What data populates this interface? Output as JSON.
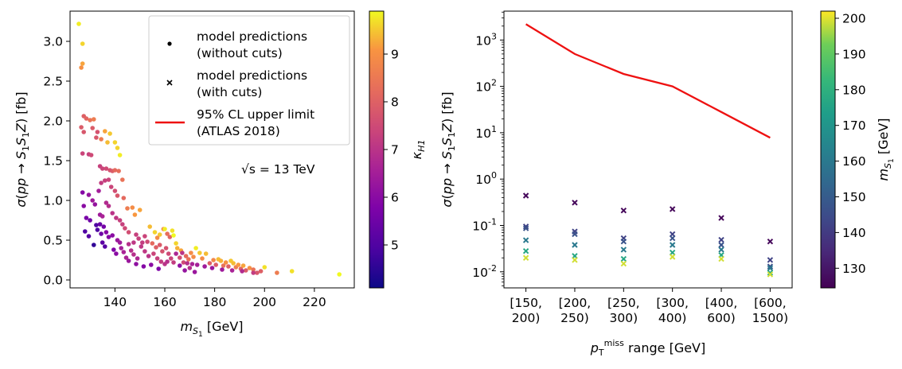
{
  "chart_data": [
    {
      "type": "scatter",
      "title": "",
      "xlabel": "m_S1 [GeV]",
      "ylabel": "σ(pp → S1 S1 Z) [fb]",
      "xlim": [
        122,
        236
      ],
      "ylim": [
        -0.1,
        3.38
      ],
      "xticks": [
        140,
        160,
        180,
        200,
        220
      ],
      "yticks": [
        0.0,
        0.5,
        1.0,
        1.5,
        2.0,
        2.5,
        3.0,
        3.5
      ],
      "xtick_labels": [
        "140",
        "160",
        "180",
        "200",
        "220"
      ],
      "ytick_labels": [
        "0.0",
        "0.5",
        "1.0",
        "1.5",
        "2.0",
        "2.5",
        "3.0"
      ],
      "annotation": "√s = 13 TeV",
      "legend": {
        "placement": "top-right",
        "entries": [
          {
            "marker": "dot",
            "line1": "model predictions",
            "line2": "(without cuts)"
          },
          {
            "marker": "cross",
            "line1": "model predictions",
            "line2": "(with cuts)"
          },
          {
            "marker": "line",
            "line1": "95% CL upper limit",
            "line2": "(ATLAS 2018)",
            "color": "#ee1111"
          }
        ]
      },
      "colorbar": {
        "label": "κ_H1",
        "colormap": "plasma",
        "range": [
          4.1,
          9.9
        ],
        "ticks": [
          5,
          6,
          7,
          8,
          9
        ],
        "tick_labels": [
          "5",
          "6",
          "7",
          "8",
          "9"
        ]
      },
      "points": [
        [
          125.5,
          3.22,
          9.8
        ],
        [
          127,
          2.97,
          9.6
        ],
        [
          127,
          2.72,
          9.2
        ],
        [
          126.5,
          2.67,
          9.0
        ],
        [
          127.5,
          2.06,
          8.0
        ],
        [
          128.5,
          2.03,
          8.1
        ],
        [
          126.5,
          1.92,
          7.9
        ],
        [
          127.5,
          1.86,
          7.8
        ],
        [
          130,
          2.01,
          8.4
        ],
        [
          131.5,
          2.02,
          8.6
        ],
        [
          131,
          1.91,
          7.9
        ],
        [
          133,
          1.86,
          7.7
        ],
        [
          127,
          1.59,
          7.4
        ],
        [
          129.5,
          1.58,
          7.3
        ],
        [
          132.5,
          1.79,
          7.8
        ],
        [
          134.5,
          1.77,
          8.6
        ],
        [
          136,
          1.87,
          9.2
        ],
        [
          137,
          1.73,
          9.4
        ],
        [
          138,
          1.84,
          9.5
        ],
        [
          140,
          1.73,
          9.6
        ],
        [
          141,
          1.66,
          9.6
        ],
        [
          142,
          1.57,
          9.8
        ],
        [
          130.5,
          1.57,
          7.5
        ],
        [
          134,
          1.43,
          7.3
        ],
        [
          135,
          1.4,
          7.4
        ],
        [
          136.5,
          1.4,
          7.5
        ],
        [
          138,
          1.38,
          7.7
        ],
        [
          139,
          1.37,
          7.9
        ],
        [
          140,
          1.38,
          8.2
        ],
        [
          141.5,
          1.37,
          8.3
        ],
        [
          143,
          1.26,
          8.4
        ],
        [
          134.5,
          1.22,
          7.2
        ],
        [
          136,
          1.25,
          7.3
        ],
        [
          137.5,
          1.26,
          7.4
        ],
        [
          138.5,
          1.17,
          7.4
        ],
        [
          140,
          1.12,
          7.6
        ],
        [
          141,
          1.06,
          7.8
        ],
        [
          143.5,
          1.03,
          8.2
        ],
        [
          145,
          0.9,
          8.6
        ],
        [
          147,
          0.91,
          8.9
        ],
        [
          148,
          0.82,
          9.1
        ],
        [
          150,
          0.88,
          9.2
        ],
        [
          127,
          1.1,
          5.9
        ],
        [
          129.5,
          1.07,
          6.2
        ],
        [
          131,
          1.0,
          6.4
        ],
        [
          132,
          0.95,
          6.2
        ],
        [
          127.5,
          0.93,
          6.0
        ],
        [
          128.5,
          0.78,
          5.7
        ],
        [
          130,
          0.75,
          5.5
        ],
        [
          133.5,
          1.12,
          6.5
        ],
        [
          134,
          0.82,
          6.4
        ],
        [
          135,
          0.8,
          6.6
        ],
        [
          136.5,
          0.97,
          6.8
        ],
        [
          137.5,
          0.93,
          6.9
        ],
        [
          139,
          0.84,
          7.0
        ],
        [
          140.5,
          0.78,
          7.1
        ],
        [
          142,
          0.75,
          7.3
        ],
        [
          143,
          0.7,
          7.3
        ],
        [
          144,
          0.65,
          7.5
        ],
        [
          145.5,
          0.6,
          7.6
        ],
        [
          128,
          0.61,
          5.0
        ],
        [
          129.5,
          0.55,
          5.1
        ],
        [
          131.5,
          0.44,
          4.6
        ],
        [
          132.5,
          0.69,
          5.0
        ],
        [
          133,
          0.63,
          5.0
        ],
        [
          134,
          0.7,
          5.4
        ],
        [
          135.5,
          0.67,
          5.6
        ],
        [
          136.5,
          0.6,
          5.9
        ],
        [
          134.5,
          0.58,
          5.5
        ],
        [
          135,
          0.47,
          5.2
        ],
        [
          136,
          0.42,
          5.1
        ],
        [
          137.5,
          0.54,
          5.9
        ],
        [
          139,
          0.56,
          6.0
        ],
        [
          141,
          0.5,
          6.3
        ],
        [
          142,
          0.47,
          6.4
        ],
        [
          139.5,
          0.38,
          5.8
        ],
        [
          140.5,
          0.33,
          6.0
        ],
        [
          142.5,
          0.4,
          6.5
        ],
        [
          143.5,
          0.35,
          6.6
        ],
        [
          144.5,
          0.28,
          6.6
        ],
        [
          145.5,
          0.45,
          6.9
        ],
        [
          146.5,
          0.37,
          6.9
        ],
        [
          147.5,
          0.47,
          7.1
        ],
        [
          148.5,
          0.57,
          7.3
        ],
        [
          149.5,
          0.52,
          7.3
        ],
        [
          151,
          0.47,
          7.2
        ],
        [
          152,
          0.55,
          7.4
        ],
        [
          153,
          0.48,
          7.5
        ],
        [
          147.5,
          0.32,
          6.9
        ],
        [
          149,
          0.27,
          6.7
        ],
        [
          150.5,
          0.42,
          7.1
        ],
        [
          152,
          0.36,
          7.1
        ],
        [
          153.5,
          0.3,
          7.0
        ],
        [
          154,
          0.67,
          9.4
        ],
        [
          156,
          0.6,
          9.6
        ],
        [
          158,
          0.57,
          9.5
        ],
        [
          159.5,
          0.64,
          8.8
        ],
        [
          161,
          0.58,
          8.3
        ],
        [
          162,
          0.54,
          8.1
        ],
        [
          157,
          0.53,
          8.9
        ],
        [
          160,
          0.64,
          9.8
        ],
        [
          163,
          0.62,
          9.7
        ],
        [
          163.5,
          0.56,
          9.9
        ],
        [
          164.5,
          0.46,
          9.6
        ],
        [
          165,
          0.4,
          9.3
        ],
        [
          166.5,
          0.37,
          9.2
        ],
        [
          155,
          0.46,
          8.2
        ],
        [
          156.5,
          0.41,
          8.0
        ],
        [
          158,
          0.44,
          7.9
        ],
        [
          159,
          0.36,
          7.7
        ],
        [
          160.5,
          0.4,
          7.7
        ],
        [
          161.5,
          0.33,
          7.5
        ],
        [
          162.5,
          0.27,
          7.4
        ],
        [
          163.5,
          0.22,
          7.2
        ],
        [
          155.5,
          0.33,
          7.4
        ],
        [
          157,
          0.27,
          7.3
        ],
        [
          158.5,
          0.23,
          7.2
        ],
        [
          160,
          0.2,
          7.0
        ],
        [
          161,
          0.23,
          6.9
        ],
        [
          166,
          0.28,
          7.6
        ],
        [
          167.5,
          0.22,
          7.5
        ],
        [
          168.5,
          0.3,
          8.2
        ],
        [
          169.5,
          0.26,
          8.4
        ],
        [
          170.5,
          0.34,
          8.9
        ],
        [
          171.5,
          0.29,
          8.9
        ],
        [
          172.5,
          0.4,
          9.8
        ],
        [
          174,
          0.34,
          9.5
        ],
        [
          175,
          0.27,
          8.9
        ],
        [
          176.5,
          0.33,
          9.4
        ],
        [
          178,
          0.21,
          8.0
        ],
        [
          179.5,
          0.25,
          8.8
        ],
        [
          180.5,
          0.19,
          7.9
        ],
        [
          181.5,
          0.26,
          9.4
        ],
        [
          182.5,
          0.24,
          9.3
        ],
        [
          183.5,
          0.18,
          8.4
        ],
        [
          184.5,
          0.22,
          9.0
        ],
        [
          185.5,
          0.17,
          8.0
        ],
        [
          186.5,
          0.24,
          9.5
        ],
        [
          187.5,
          0.21,
          9.4
        ],
        [
          188.5,
          0.16,
          8.6
        ],
        [
          189.5,
          0.19,
          9.1
        ],
        [
          190.5,
          0.14,
          8.1
        ],
        [
          191.5,
          0.18,
          9.2
        ],
        [
          192.5,
          0.12,
          7.9
        ],
        [
          194,
          0.15,
          9.0
        ],
        [
          195.5,
          0.13,
          8.4
        ],
        [
          197,
          0.09,
          7.8
        ],
        [
          198.5,
          0.11,
          8.0
        ],
        [
          200,
          0.16,
          9.7
        ],
        [
          205,
          0.09,
          8.6
        ],
        [
          211,
          0.11,
          9.7
        ],
        [
          230,
          0.07,
          9.9
        ],
        [
          164.5,
          0.33,
          6.7
        ],
        [
          167,
          0.34,
          7.0
        ],
        [
          169,
          0.21,
          6.9
        ],
        [
          171,
          0.2,
          6.6
        ],
        [
          173,
          0.19,
          6.5
        ],
        [
          176,
          0.17,
          6.4
        ],
        [
          179,
          0.15,
          6.3
        ],
        [
          183,
          0.13,
          6.4
        ],
        [
          187,
          0.12,
          6.6
        ],
        [
          191,
          0.11,
          6.8
        ],
        [
          195.5,
          0.09,
          7.2
        ],
        [
          145.5,
          0.24,
          6.3
        ],
        [
          148.5,
          0.2,
          6.1
        ],
        [
          151.5,
          0.17,
          5.9
        ],
        [
          154.5,
          0.19,
          6.0
        ],
        [
          157.5,
          0.14,
          5.8
        ],
        [
          166,
          0.18,
          6.1
        ],
        [
          168,
          0.12,
          6.2
        ],
        [
          170,
          0.15,
          6.9
        ],
        [
          172,
          0.1,
          6.3
        ]
      ]
    },
    {
      "type": "scatter",
      "title": "",
      "xlabel": "p_T^miss range [GeV]",
      "ylabel": "σ(pp → S1 S1 Z) [fb]",
      "yscale": "log",
      "ylim": [
        0.0045,
        4200
      ],
      "categories": [
        "[150, 200)",
        "[200, 250)",
        "[250, 300)",
        "[300, 400)",
        "[400, 600)",
        "[600, 1500)"
      ],
      "category_lines": [
        [
          "[150,",
          "200)"
        ],
        [
          "[200,",
          "250)"
        ],
        [
          "[250,",
          "300)"
        ],
        [
          "[300,",
          "400)"
        ],
        [
          "[400,",
          "600)"
        ],
        [
          "[600,",
          "1500)"
        ]
      ],
      "ytick_labels": [
        "10^-2",
        "10^-1",
        "10^0",
        "10^1",
        "10^2",
        "10^3"
      ],
      "upper_limit": {
        "name": "95% CL upper limit (ATLAS 2018)",
        "color": "#ee1111",
        "values": [
          2200,
          500,
          185,
          100,
          28,
          7.8
        ]
      },
      "colorbar": {
        "label": "m_S1 [GeV]",
        "colormap": "viridis",
        "range": [
          124.5,
          202
        ],
        "ticks": [
          130,
          140,
          150,
          160,
          170,
          180,
          190,
          200
        ],
        "tick_labels": [
          "130",
          "140",
          "150",
          "160",
          "170",
          "180",
          "190",
          "200"
        ]
      },
      "model_points": [
        {
          "category": 0,
          "values": [
            [
              0.44,
              126
            ],
            [
              0.095,
              142
            ],
            [
              0.087,
              147
            ],
            [
              0.048,
              160
            ],
            [
              0.028,
              176
            ],
            [
              0.02,
              199
            ]
          ]
        },
        {
          "category": 1,
          "values": [
            [
              0.31,
              126
            ],
            [
              0.074,
              142
            ],
            [
              0.065,
              147
            ],
            [
              0.038,
              160
            ],
            [
              0.022,
              176
            ],
            [
              0.018,
              199
            ]
          ]
        },
        {
          "category": 2,
          "values": [
            [
              0.21,
              126
            ],
            [
              0.053,
              142
            ],
            [
              0.045,
              147
            ],
            [
              0.03,
              160
            ],
            [
              0.019,
              176
            ],
            [
              0.015,
              199
            ]
          ]
        },
        {
          "category": 3,
          "values": [
            [
              0.225,
              126
            ],
            [
              0.065,
              142
            ],
            [
              0.053,
              147
            ],
            [
              0.038,
              160
            ],
            [
              0.026,
              176
            ],
            [
              0.021,
              199
            ]
          ]
        },
        {
          "category": 4,
          "values": [
            [
              0.145,
              126
            ],
            [
              0.049,
              142
            ],
            [
              0.038,
              147
            ],
            [
              0.03,
              160
            ],
            [
              0.023,
              176
            ],
            [
              0.019,
              199
            ]
          ]
        },
        {
          "category": 5,
          "values": [
            [
              0.045,
              126
            ],
            [
              0.018,
              142
            ],
            [
              0.013,
              147
            ],
            [
              0.012,
              160
            ],
            [
              0.0095,
              176
            ],
            [
              0.0088,
              199
            ]
          ]
        }
      ]
    }
  ]
}
